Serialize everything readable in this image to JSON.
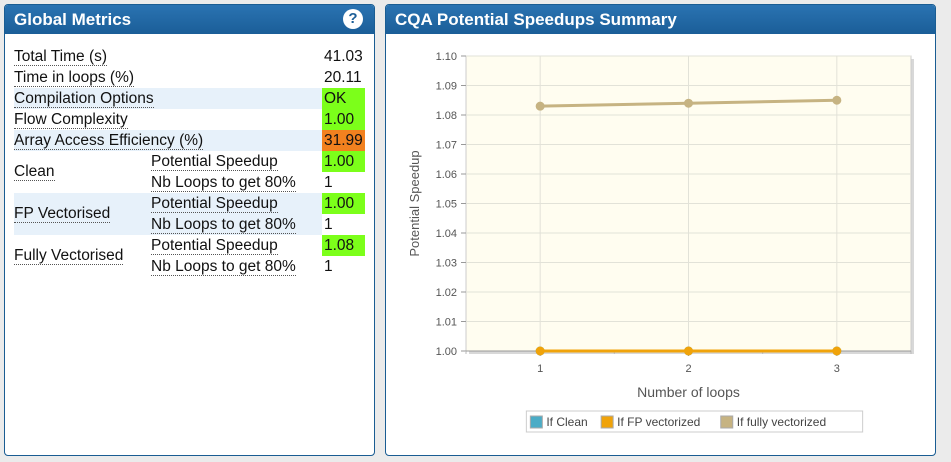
{
  "left_panel": {
    "title": "Global Metrics",
    "help_icon": "question-circle-icon",
    "rows": {
      "total_time": {
        "label": "Total Time (s)",
        "value": "41.03"
      },
      "time_in_loops": {
        "label": "Time in loops (%)",
        "value": "20.11"
      },
      "compilation_options": {
        "label": "Compilation Options",
        "value": "OK"
      },
      "flow_complexity": {
        "label": "Flow Complexity",
        "value": "1.00"
      },
      "array_access": {
        "label": "Array Access Efficiency (%)",
        "value": "31.99"
      }
    },
    "groups": [
      {
        "label": "Clean",
        "speedup_label": "Potential Speedup",
        "speedup": "1.00",
        "loops_label": "Nb Loops to get 80%",
        "loops": "1"
      },
      {
        "label": "FP Vectorised",
        "speedup_label": "Potential Speedup",
        "speedup": "1.00",
        "loops_label": "Nb Loops to get 80%",
        "loops": "1"
      },
      {
        "label": "Fully Vectorised",
        "speedup_label": "Potential Speedup",
        "speedup": "1.08",
        "loops_label": "Nb Loops to get 80%",
        "loops": "1"
      }
    ],
    "colors": {
      "ok": "#7cff1a",
      "warn": "#f2811f",
      "alt_row": "#e7f1fa"
    }
  },
  "right_panel": {
    "title": "CQA Potential Speedups Summary"
  },
  "chart_data": {
    "type": "line",
    "title": "",
    "xlabel": "Number of loops",
    "ylabel": "Potential Speedup",
    "x": [
      1,
      2,
      3
    ],
    "xlim": [
      0.5,
      3.5
    ],
    "ylim": [
      1.0,
      1.1
    ],
    "yticks": [
      "1.00",
      "1.01",
      "1.02",
      "1.03",
      "1.04",
      "1.05",
      "1.06",
      "1.07",
      "1.08",
      "1.09",
      "1.10"
    ],
    "xticks": [
      "1",
      "2",
      "3"
    ],
    "grid": true,
    "legend_position": "bottom",
    "series": [
      {
        "name": "If Clean",
        "values": [
          1.0,
          1.0,
          1.0
        ],
        "color": "#4bacc6"
      },
      {
        "name": "If FP vectorized",
        "values": [
          1.0,
          1.0,
          1.0
        ],
        "color": "#f0a30a"
      },
      {
        "name": "If fully vectorized",
        "values": [
          1.083,
          1.084,
          1.085
        ],
        "color": "#c6b382"
      }
    ]
  }
}
